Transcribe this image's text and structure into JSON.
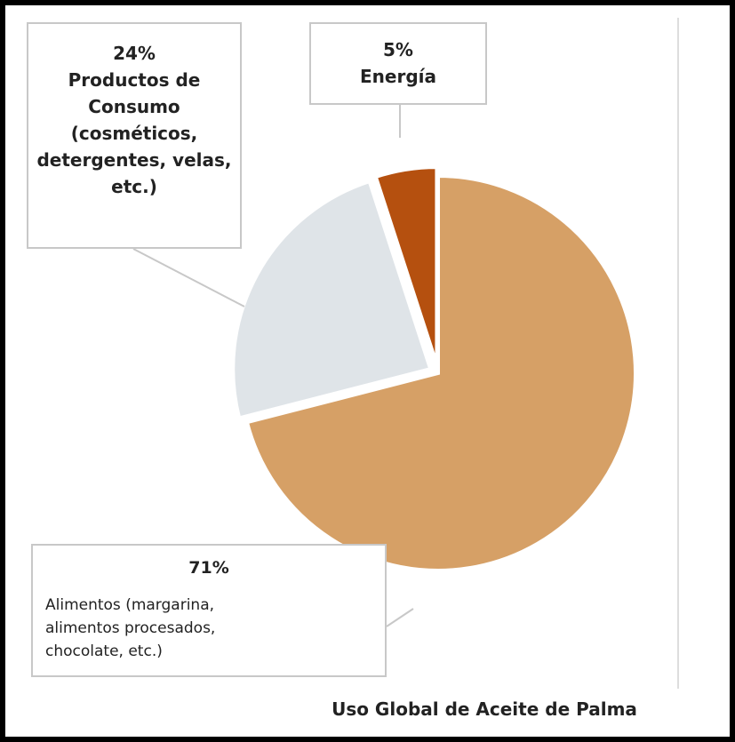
{
  "chart_data": {
    "type": "pie",
    "title": "Uso Global de Aceite de Palma",
    "categories": [
      "Alimentos (margarina, alimentos procesados, chocolate, etc.)",
      "Productos de Consumo (cosméticos, detergentes, velas, etc.)",
      "Energía"
    ],
    "values": [
      71,
      24,
      5
    ],
    "value_labels": [
      "71%",
      "24%",
      "5%"
    ],
    "colors": [
      "#d6a066",
      "#dfe4e8",
      "#b5500f"
    ]
  }
}
